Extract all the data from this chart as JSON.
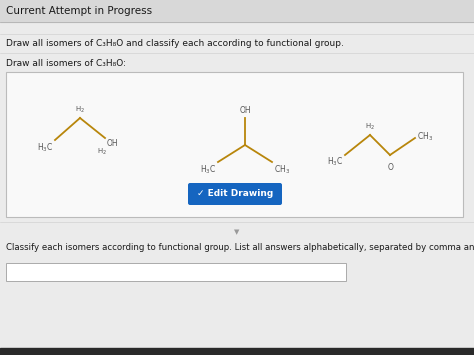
{
  "page_bg": "#ebebeb",
  "title_bar_bg": "#d8d8d8",
  "title_text": "Current Attempt in Progress",
  "question_text": "Draw all isomers of C₃H₈O and classify each according to functional group.",
  "draw_label": "Draw all isomers of C₃H₈O:",
  "classify_text": "Classify each isomers according to functional group. List all answers alphabetically, separated by comma and space.",
  "button_text": "✓ Edit Drawing",
  "button_color": "#1565c0",
  "button_text_color": "#ffffff",
  "box_bg": "#f9f9f9",
  "box_border": "#bbbbbb",
  "structure_color": "#b8860b",
  "label_color": "#555555",
  "text_color_dark": "#1a1a1a",
  "sep_color": "#cccccc",
  "bottom_bar_color": "#2a2a2a"
}
